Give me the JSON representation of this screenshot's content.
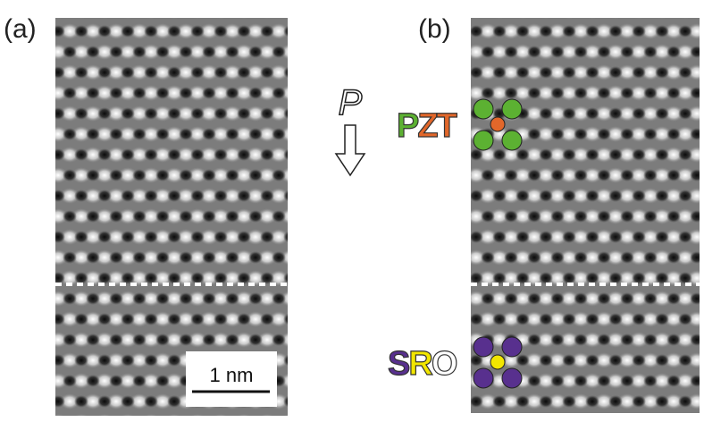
{
  "panels": [
    {
      "label": "(a)",
      "scale_bar": "1 nm"
    },
    {
      "label": "(b)"
    }
  ],
  "polarization": {
    "label": "P"
  },
  "layers": [
    {
      "letters": [
        {
          "text": "P",
          "color": "#5cb132"
        },
        {
          "text": "Z",
          "color": "#e2672a"
        },
        {
          "text": "T",
          "color": "#e2672a"
        }
      ]
    },
    {
      "letters": [
        {
          "text": "S",
          "color": "#58308e"
        },
        {
          "text": "R",
          "color": "#f2e600"
        },
        {
          "text": "O",
          "color": "#ffffff"
        }
      ]
    }
  ]
}
